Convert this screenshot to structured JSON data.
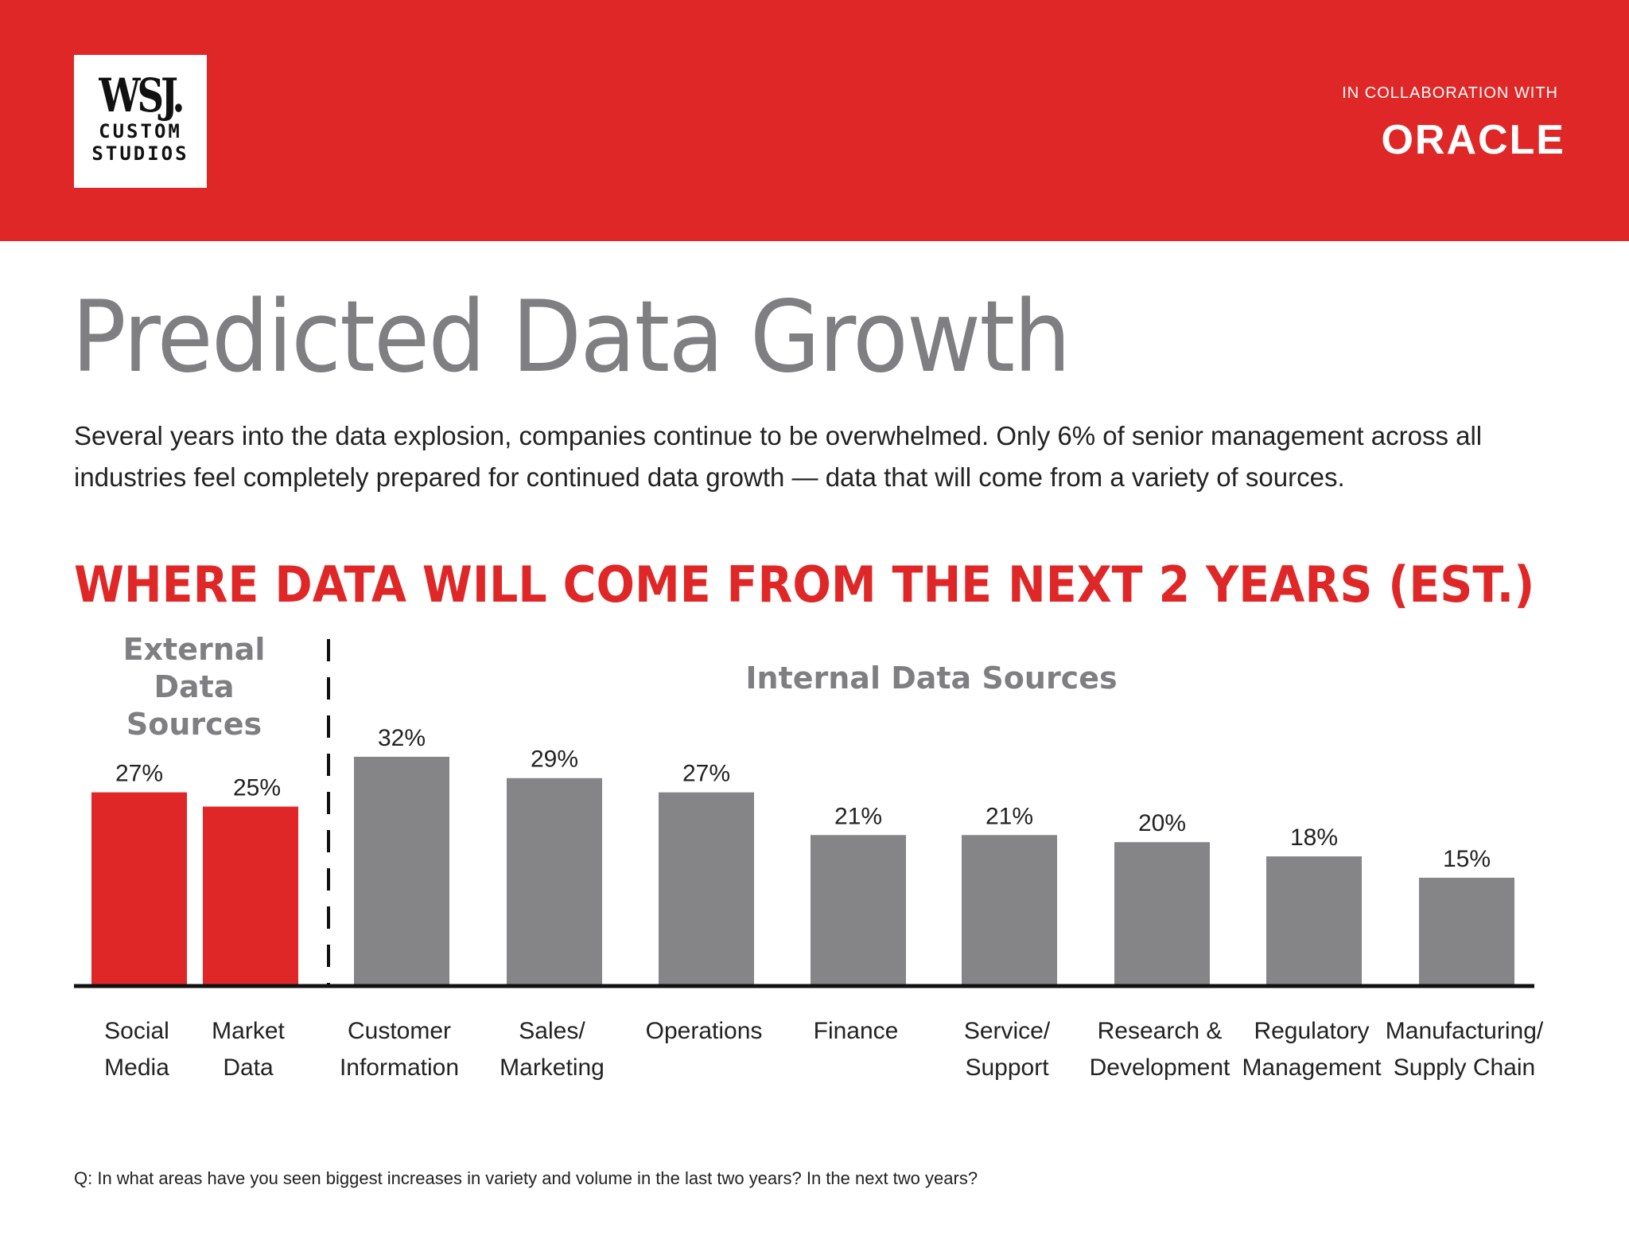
{
  "header": {
    "logo_text": "WSJ. CUSTOM STUDIOS",
    "logo_line1": "WSJ.",
    "logo_line2": "CUSTOM",
    "logo_line3": "STUDIOS",
    "collab_label": "IN COLLABORATION WITH",
    "partner_logo_text": "ORACLE"
  },
  "page_title": "Predicted Data Growth",
  "intro": "Several years into the data explosion, companies continue to be overwhelmed. Only 6% of senior management across all industries feel completely prepared for continued data growth — data that will come from a variety of sources.",
  "colors": {
    "brand_red": "#e02727",
    "internal_gray": "#858487"
  },
  "chart_data": {
    "type": "bar",
    "title": "WHERE DATA WILL COME FROM THE NEXT 2 YEARS (EST.)",
    "groups": [
      {
        "label": "External Data Sources",
        "color": "#e02727",
        "categories": [
          "Social Media",
          "Market Data"
        ]
      },
      {
        "label": "Internal Data Sources",
        "color": "#858487",
        "categories": [
          "Customer Information",
          "Sales/ Marketing",
          "Operations",
          "Finance",
          "Service/ Support",
          "Research & Development",
          "Regulatory Management",
          "Manufacturing/ Supply Chain"
        ]
      }
    ],
    "categories": [
      [
        "Social",
        "Media"
      ],
      [
        "Market",
        "Data"
      ],
      [
        "Customer",
        "Information"
      ],
      [
        "Sales/",
        "Marketing"
      ],
      [
        "Operations",
        ""
      ],
      [
        "Finance",
        ""
      ],
      [
        "Service/",
        "Support"
      ],
      [
        "Research &",
        "Development"
      ],
      [
        "Regulatory",
        "Management"
      ],
      [
        "Manufacturing/",
        "Supply Chain"
      ]
    ],
    "values": [
      27,
      25,
      32,
      29,
      27,
      21,
      21,
      20,
      18,
      15
    ],
    "data_labels": [
      "27%",
      "25%",
      "32%",
      "29%",
      "27%",
      "21%",
      "21%",
      "20%",
      "18%",
      "15%"
    ],
    "unit": "%",
    "ylim": [
      0,
      32
    ],
    "grid": false,
    "legend": "none"
  },
  "footnote": "Q: In what areas have you seen biggest increases in variety and volume in the last two years? In the next two years?"
}
